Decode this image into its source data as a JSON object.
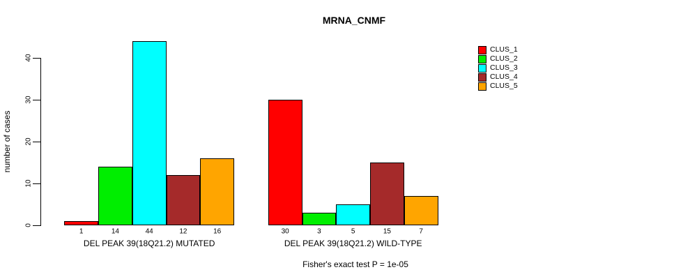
{
  "chart_data": {
    "type": "bar",
    "title": "MRNA_CNMF",
    "ylabel": "number of cases",
    "xlabel": "",
    "ylim": [
      0,
      45
    ],
    "yticks": [
      0,
      10,
      20,
      30,
      40
    ],
    "grid": false,
    "legend_position": "right-outside",
    "bar_value_labels": true,
    "categories": [
      "DEL PEAK 39(18Q21.2) MUTATED",
      "DEL PEAK 39(18Q21.2) WILD-TYPE"
    ],
    "series": [
      {
        "name": "CLUS_1",
        "color": "#ff0000",
        "values": [
          1,
          30
        ]
      },
      {
        "name": "CLUS_2",
        "color": "#00ee00",
        "values": [
          14,
          3
        ]
      },
      {
        "name": "CLUS_3",
        "color": "#00ffff",
        "values": [
          44,
          5
        ]
      },
      {
        "name": "CLUS_4",
        "color": "#a52a2a",
        "values": [
          12,
          15
        ]
      },
      {
        "name": "CLUS_5",
        "color": "#ffa500",
        "values": [
          16,
          7
        ]
      }
    ],
    "annotation": "Fisher's exact test P = 1e-05"
  }
}
